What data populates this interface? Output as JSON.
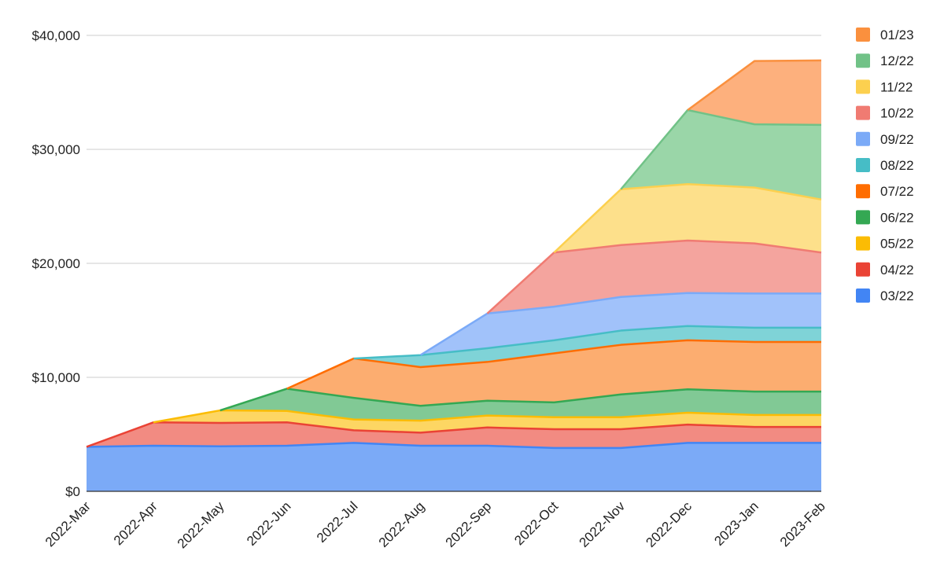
{
  "chart_data": {
    "type": "area",
    "stacked": true,
    "title": "",
    "xlabel": "",
    "ylabel": "",
    "categories": [
      "2022-Mar",
      "2022-Apr",
      "2022-May",
      "2022-Jun",
      "2022-Jul",
      "2022-Aug",
      "2022-Sep",
      "2022-Oct",
      "2022-Nov",
      "2022-Dec",
      "2023-Jan",
      "2023-Feb"
    ],
    "ylim": [
      0,
      40000
    ],
    "yticks": [
      0,
      10000,
      20000,
      30000,
      40000
    ],
    "ytick_labels": [
      "$0",
      "$10,000",
      "$20,000",
      "$30,000",
      "$40,000"
    ],
    "grid": true,
    "legend_position": "right",
    "series": [
      {
        "name": "03/22",
        "fill": "#7baaf7",
        "line": "#4285f4",
        "values": [
          3900,
          4000,
          3950,
          4000,
          4250,
          4000,
          4000,
          3800,
          3800,
          4250,
          4250,
          4250
        ]
      },
      {
        "name": "04/22",
        "fill": "#f28b82",
        "line": "#ea4335",
        "values": [
          0,
          2050,
          2050,
          2050,
          1100,
          1150,
          1600,
          1650,
          1650,
          1600,
          1400,
          1400
        ]
      },
      {
        "name": "05/22",
        "fill": "#fdd663",
        "line": "#fbbc04",
        "values": [
          0,
          0,
          1100,
          1000,
          950,
          1050,
          1050,
          1050,
          1050,
          1050,
          1050,
          1050
        ]
      },
      {
        "name": "06/22",
        "fill": "#81c995",
        "line": "#34a853",
        "values": [
          0,
          0,
          0,
          1950,
          1900,
          1300,
          1300,
          1300,
          2000,
          2050,
          2050,
          2050
        ]
      },
      {
        "name": "07/22",
        "fill": "#fcad70",
        "line": "#ff6d01",
        "values": [
          0,
          0,
          0,
          0,
          3450,
          3400,
          3400,
          4300,
          4350,
          4300,
          4350,
          4350
        ]
      },
      {
        "name": "08/22",
        "fill": "#7fd3d7",
        "line": "#46bdc6",
        "values": [
          0,
          0,
          0,
          0,
          0,
          1050,
          1200,
          1150,
          1250,
          1250,
          1250,
          1250
        ]
      },
      {
        "name": "09/22",
        "fill": "#a1c2fa",
        "line": "#7baaf7",
        "values": [
          0,
          0,
          0,
          0,
          0,
          0,
          3050,
          2950,
          2950,
          2900,
          3000,
          3000
        ]
      },
      {
        "name": "10/22",
        "fill": "#f4a49e",
        "line": "#f07b72",
        "values": [
          0,
          0,
          0,
          0,
          0,
          0,
          0,
          4750,
          4550,
          4600,
          4400,
          3600
        ]
      },
      {
        "name": "11/22",
        "fill": "#fde08b",
        "line": "#fcd04f",
        "values": [
          0,
          0,
          0,
          0,
          0,
          0,
          0,
          0,
          4900,
          4950,
          4900,
          4650
        ]
      },
      {
        "name": "12/22",
        "fill": "#9ad6a8",
        "line": "#71c287",
        "values": [
          0,
          0,
          0,
          0,
          0,
          0,
          0,
          0,
          0,
          6500,
          5550,
          6550
        ]
      },
      {
        "name": "01/23",
        "fill": "#fdb07d",
        "line": "#fa903e",
        "values": [
          0,
          0,
          0,
          0,
          0,
          0,
          0,
          0,
          0,
          0,
          5550,
          5650
        ]
      }
    ],
    "legend_swatches": {
      "01/23": "#fa903e",
      "12/22": "#71c287",
      "11/22": "#fcd04f",
      "10/22": "#f07b72",
      "09/22": "#7baaf7",
      "08/22": "#46bdc6",
      "07/22": "#ff6d01",
      "06/22": "#34a853",
      "05/22": "#fbbc04",
      "04/22": "#ea4335",
      "03/22": "#4285f4"
    },
    "gridline_color": "#cccccc",
    "axis_color": "#333333"
  }
}
